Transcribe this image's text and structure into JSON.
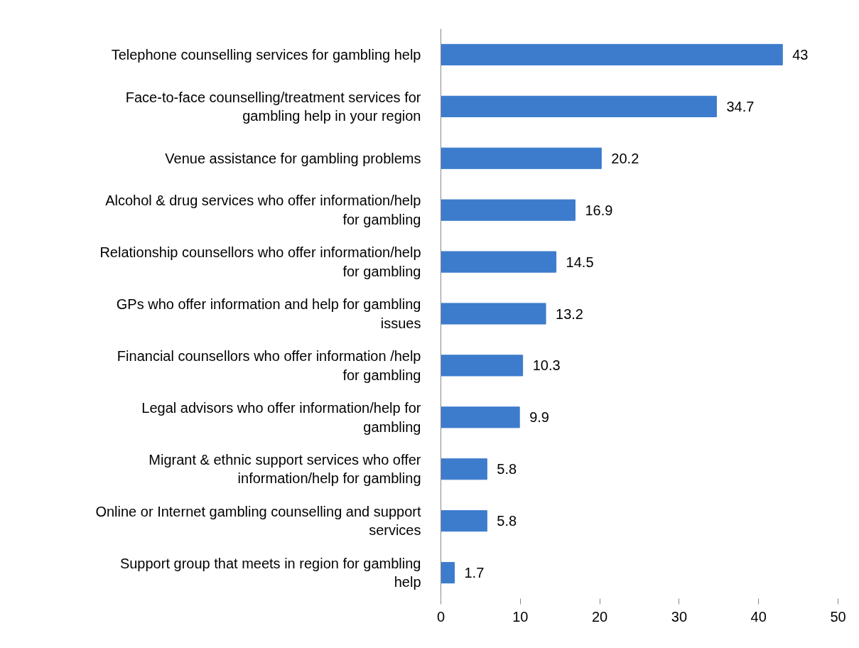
{
  "chart_data": {
    "type": "bar",
    "orientation": "horizontal",
    "categories": [
      "Telephone counselling services for gambling help",
      "Face-to-face counselling/treatment services for\ngambling help in your region",
      "Venue assistance for gambling problems",
      "Alcohol & drug services who offer information/help\nfor gambling",
      "Relationship counsellors who offer information/help\nfor gambling",
      "GPs who offer information and help for gambling\nissues",
      "Financial counsellors who offer information /help\nfor gambling",
      "Legal advisors who offer information/help for\ngambling",
      "Migrant & ethnic support services who offer\ninformation/help for gambling",
      "Online or Internet gambling counselling and support\nservices",
      "Support group that meets in region for gambling\nhelp"
    ],
    "values": [
      43,
      34.7,
      20.2,
      16.9,
      14.5,
      13.2,
      10.3,
      9.9,
      5.8,
      5.8,
      1.7
    ],
    "color": "#3d7ccc",
    "xlim": [
      0,
      50
    ],
    "xticks": [
      0,
      10,
      20,
      30,
      40,
      50
    ],
    "data_labels": true,
    "grid": false
  }
}
